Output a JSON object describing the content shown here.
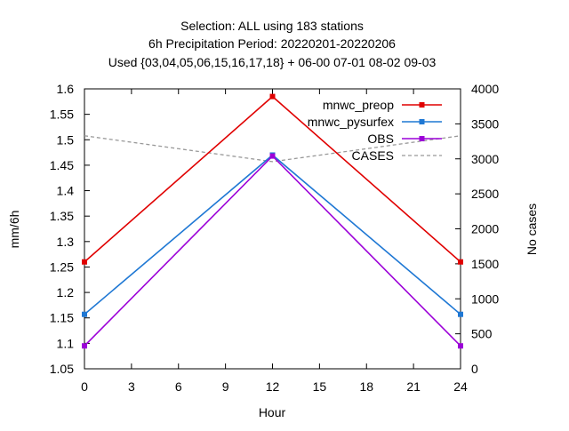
{
  "chart_data": {
    "type": "line",
    "title_lines": [
      "Selection: ALL using   183 stations",
      "6h Precipitation    Period: 20220201-20220206",
      "Used {03,04,05,06,15,16,17,18} + 06-00 07-01 08-02 09-03"
    ],
    "xlabel": "Hour",
    "ylabel": "mm/6h",
    "y2label": "No cases",
    "x": [
      0,
      12,
      24
    ],
    "xlim": [
      0,
      24
    ],
    "xticks": [
      "0",
      "3",
      "6",
      "9",
      "12",
      "15",
      "18",
      "21",
      "24"
    ],
    "ylim": [
      1.05,
      1.6
    ],
    "yticks": [
      "1.05",
      "1.1",
      "1.15",
      "1.2",
      "1.25",
      "1.3",
      "1.35",
      "1.4",
      "1.45",
      "1.5",
      "1.55",
      "1.6"
    ],
    "y2lim": [
      0,
      4000
    ],
    "y2ticks": [
      "0",
      "500",
      "1000",
      "1500",
      "2000",
      "2500",
      "3000",
      "3500",
      "4000"
    ],
    "grid": false,
    "legend_position": "top-right",
    "series": [
      {
        "name": "mnwc_preop",
        "axis": "left",
        "color": "#e00000",
        "values": [
          1.26,
          1.585,
          1.26
        ]
      },
      {
        "name": "mnwc_pysurfex",
        "axis": "left",
        "color": "#1f78d4",
        "values": [
          1.157,
          1.47,
          1.157
        ]
      },
      {
        "name": "OBS",
        "axis": "left",
        "color": "#9c00d8",
        "values": [
          1.095,
          1.468,
          1.095
        ]
      },
      {
        "name": "CASES",
        "axis": "right",
        "color": "#999999",
        "dashed": true,
        "values": [
          3330,
          2960,
          3330
        ]
      }
    ]
  }
}
